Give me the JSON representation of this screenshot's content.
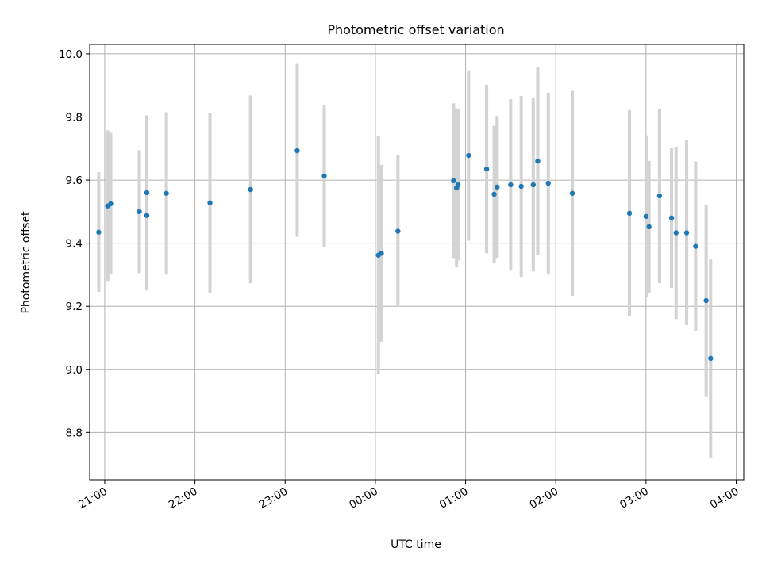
{
  "chart_data": {
    "type": "scatter",
    "title": "Photometric offset variation",
    "xlabel": "UTC time",
    "ylabel": "Photometric offset",
    "x_ticks": [
      "21:00",
      "22:00",
      "23:00",
      "00:00",
      "01:00",
      "02:00",
      "03:00",
      "04:00"
    ],
    "y_ticks": [
      "8.8",
      "9.0",
      "9.2",
      "9.4",
      "9.6",
      "9.8",
      "10.0"
    ],
    "x_range": [
      "20:50",
      "04:05"
    ],
    "ylim": [
      8.65,
      10.03
    ],
    "grid": true,
    "colors": {
      "points": "#1f77b4",
      "errorbars": "#d3d3d3",
      "grid": "#b0b0b0"
    },
    "points": [
      {
        "time": "20:56",
        "y": 9.435,
        "lo": 9.245,
        "hi": 9.625
      },
      {
        "time": "21:02",
        "y": 9.518,
        "lo": 9.28,
        "hi": 9.758
      },
      {
        "time": "21:04",
        "y": 9.525,
        "lo": 9.3,
        "hi": 9.75
      },
      {
        "time": "21:23",
        "y": 9.5,
        "lo": 9.305,
        "hi": 9.695
      },
      {
        "time": "21:28",
        "y": 9.56,
        "lo": 9.32,
        "hi": 9.805
      },
      {
        "time": "21:28",
        "y": 9.488,
        "lo": 9.25,
        "hi": 9.725
      },
      {
        "time": "21:41",
        "y": 9.558,
        "lo": 9.3,
        "hi": 9.815
      },
      {
        "time": "22:10",
        "y": 9.528,
        "lo": 9.243,
        "hi": 9.813
      },
      {
        "time": "22:37",
        "y": 9.57,
        "lo": 9.273,
        "hi": 9.868
      },
      {
        "time": "23:08",
        "y": 9.693,
        "lo": 9.42,
        "hi": 9.968
      },
      {
        "time": "23:26",
        "y": 9.613,
        "lo": 9.388,
        "hi": 9.838
      },
      {
        "time": "00:02",
        "y": 9.362,
        "lo": 8.985,
        "hi": 9.74
      },
      {
        "time": "00:04",
        "y": 9.368,
        "lo": 9.088,
        "hi": 9.648
      },
      {
        "time": "00:15",
        "y": 9.438,
        "lo": 9.198,
        "hi": 9.678
      },
      {
        "time": "00:52",
        "y": 9.598,
        "lo": 9.353,
        "hi": 9.843
      },
      {
        "time": "00:54",
        "y": 9.575,
        "lo": 9.323,
        "hi": 9.827
      },
      {
        "time": "00:55",
        "y": 9.585,
        "lo": 9.345,
        "hi": 9.825
      },
      {
        "time": "01:02",
        "y": 9.678,
        "lo": 9.408,
        "hi": 9.948
      },
      {
        "time": "01:14",
        "y": 9.635,
        "lo": 9.368,
        "hi": 9.902
      },
      {
        "time": "01:19",
        "y": 9.555,
        "lo": 9.338,
        "hi": 9.772
      },
      {
        "time": "01:21",
        "y": 9.578,
        "lo": 9.353,
        "hi": 9.803
      },
      {
        "time": "01:30",
        "y": 9.585,
        "lo": 9.313,
        "hi": 9.857
      },
      {
        "time": "01:37",
        "y": 9.58,
        "lo": 9.293,
        "hi": 9.867
      },
      {
        "time": "01:45",
        "y": 9.585,
        "lo": 9.31,
        "hi": 9.86
      },
      {
        "time": "01:48",
        "y": 9.66,
        "lo": 9.363,
        "hi": 9.957
      },
      {
        "time": "01:55",
        "y": 9.59,
        "lo": 9.303,
        "hi": 9.877
      },
      {
        "time": "02:11",
        "y": 9.558,
        "lo": 9.233,
        "hi": 9.883
      },
      {
        "time": "02:49",
        "y": 9.495,
        "lo": 9.168,
        "hi": 9.822
      },
      {
        "time": "03:00",
        "y": 9.485,
        "lo": 9.228,
        "hi": 9.742
      },
      {
        "time": "03:02",
        "y": 9.452,
        "lo": 9.243,
        "hi": 9.661
      },
      {
        "time": "03:09",
        "y": 9.55,
        "lo": 9.273,
        "hi": 9.827
      },
      {
        "time": "03:17",
        "y": 9.48,
        "lo": 9.258,
        "hi": 9.702
      },
      {
        "time": "03:20",
        "y": 9.433,
        "lo": 9.16,
        "hi": 9.706
      },
      {
        "time": "03:27",
        "y": 9.433,
        "lo": 9.14,
        "hi": 9.726
      },
      {
        "time": "03:33",
        "y": 9.39,
        "lo": 9.12,
        "hi": 9.66
      },
      {
        "time": "03:40",
        "y": 9.218,
        "lo": 8.915,
        "hi": 9.521
      },
      {
        "time": "03:43",
        "y": 9.035,
        "lo": 8.72,
        "hi": 9.35
      }
    ]
  }
}
